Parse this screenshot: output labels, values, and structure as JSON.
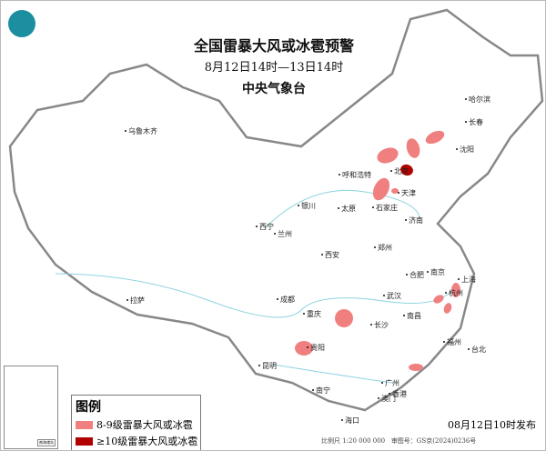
{
  "header": {
    "title": "全国雷暴大风或冰雹预警",
    "period": "8月12日14时—13日14时",
    "issuer": "中央气象台"
  },
  "cities": [
    "乌鲁木齐",
    "哈尔滨",
    "长春",
    "沈阳",
    "呼和浩特",
    "北京",
    "天津",
    "银川",
    "太原",
    "石家庄",
    "济南",
    "西宁",
    "兰州",
    "郑州",
    "西安",
    "合肥",
    "南京",
    "上海",
    "成都",
    "武汉",
    "杭州",
    "重庆",
    "长沙",
    "南昌",
    "拉萨",
    "贵阳",
    "福州",
    "台北",
    "昆明",
    "南宁",
    "广州",
    "香港",
    "澳门",
    "海口"
  ],
  "legend": {
    "title": "图例",
    "items": [
      {
        "label": "8-9级雷暴大风或冰雹",
        "color": "#f08080"
      },
      {
        "label": "≥10级雷暴大风或冰雹",
        "color": "#b00000"
      }
    ]
  },
  "footer": {
    "published": "08月12日10时发布",
    "scale": "比例尺 1:20 000 000",
    "review": "审图号：GS京(2024)0236号"
  },
  "inset": {
    "label": "南海诸岛"
  },
  "colors": {
    "warning_8_9": "#f08080",
    "warning_10": "#b00000",
    "border": "#777777",
    "river": "#8fd3e0"
  }
}
